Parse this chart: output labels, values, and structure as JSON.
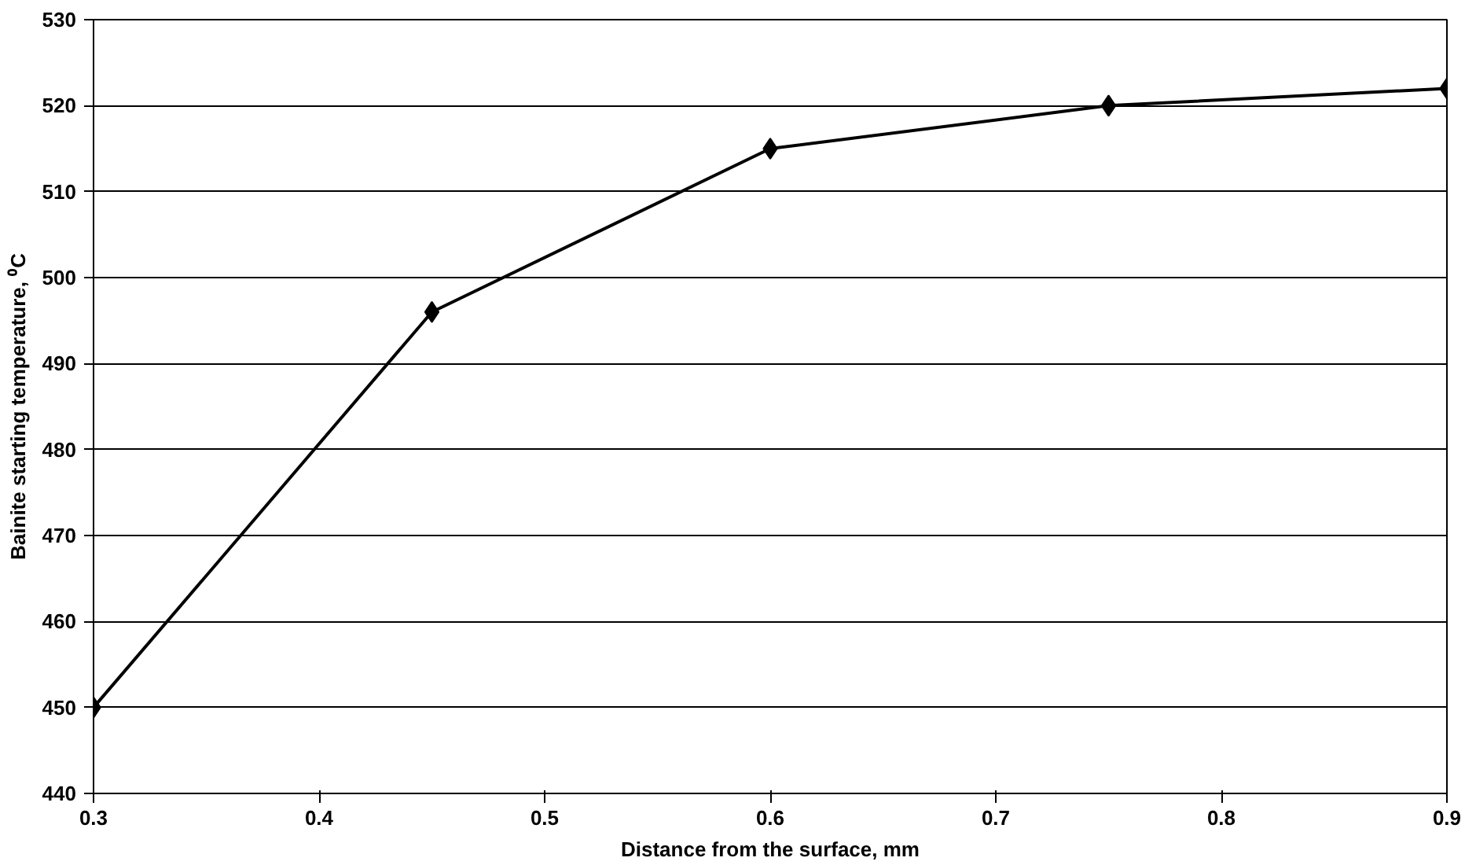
{
  "chart_data": {
    "type": "line",
    "xlabel": "Distance from the surface, mm",
    "ylabel": "Bainite starting temperature, ⁰C",
    "x": [
      0.3,
      0.45,
      0.6,
      0.75,
      0.9
    ],
    "series": [
      {
        "color": "#000000",
        "values": [
          450,
          496,
          515,
          520,
          522
        ]
      }
    ],
    "xlim": [
      0.3,
      0.9
    ],
    "xticks": [
      0.3,
      0.4,
      0.5,
      0.6,
      0.7,
      0.8,
      0.9
    ],
    "ylim": [
      440,
      530
    ],
    "yticks": [
      440,
      450,
      460,
      470,
      480,
      490,
      500,
      510,
      520,
      530
    ],
    "grid": "y",
    "marker": "diamond",
    "line_style": "solid"
  }
}
